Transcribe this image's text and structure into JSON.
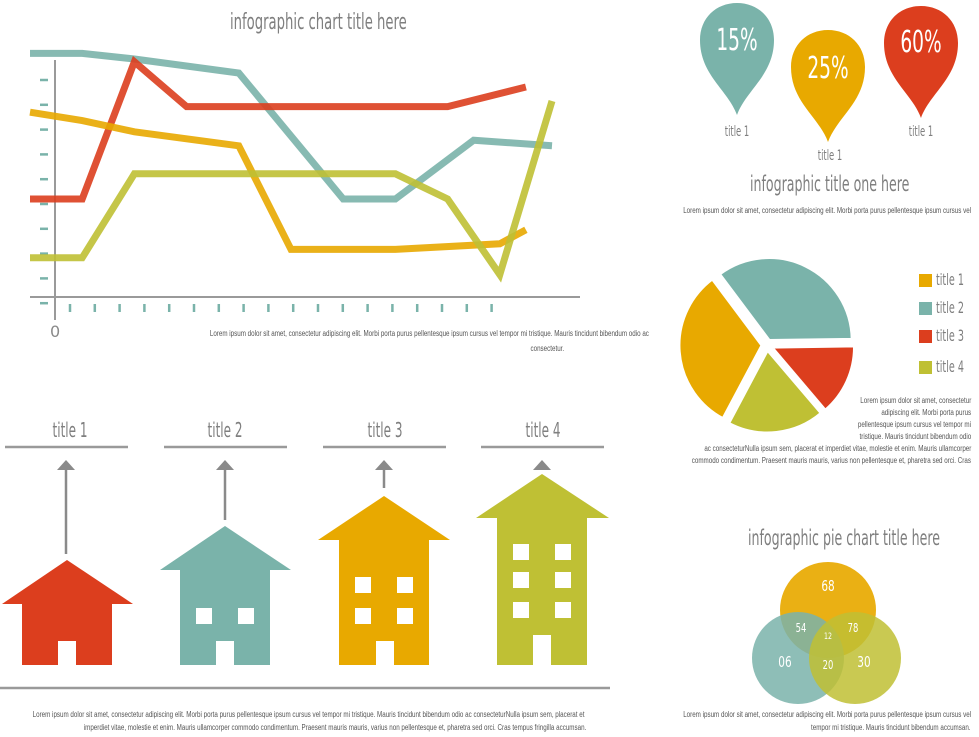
{
  "colors": {
    "orange": "#e8a900",
    "teal": "#7ab3aa",
    "red": "#dc3e1e",
    "olive": "#bfc034",
    "axis": "#9a9a9a",
    "tick": "#7ab3aa"
  },
  "line_chart": {
    "title": "infographic chart title here",
    "origin_label": "0",
    "caption_line1": "Lorem ipsum dolor sit amet, consectetur adipiscing elit. Morbi porta purus pellentesque ipsum cursus vel tempor mi tristique. Mauris tincidunt bibendum odio ac",
    "caption_line2": "consectetur."
  },
  "houses": {
    "items": [
      {
        "label": "title 1"
      },
      {
        "label": "title 2"
      },
      {
        "label": "title 3"
      },
      {
        "label": "title 4"
      }
    ],
    "caption_line1": "Lorem ipsum dolor sit amet, consectetur adipiscing elit. Morbi porta purus pellentesque ipsum cursus vel tempor mi tristique. Mauris tincidunt bibendum odio ac consecteturNulla ipsum sem, placerat et",
    "caption_line2": "imperdiet vitae, molestie et enim. Mauris ullamcorper commodo condimentum. Praesent mauris mauris, varius non pellentesque et, pharetra sed orci. Cras tempus fringilla accumsan."
  },
  "pins": [
    {
      "value": "15%",
      "label": "title 1"
    },
    {
      "value": "25%",
      "label": "title 1"
    },
    {
      "value": "60%",
      "label": "title 1"
    }
  ],
  "section_one": {
    "title": "infographic title one here",
    "text": "Lorem ipsum dolor sit amet, consectetur adipiscing elit. Morbi porta purus pellentesque ipsum cursus vel"
  },
  "pie": {
    "legend": [
      "title 1",
      "title 2",
      "title 3",
      "title 4"
    ],
    "text_lines": [
      "Lorem ipsum dolor sit amet, consectetur",
      "adipiscing elit. Morbi porta purus",
      "pellentesque ipsum cursus vel tempor mi",
      "tristique. Mauris tincidunt bibendum odio",
      "ac consecteturNulla ipsum sem, placerat et imperdiet vitae, molestie et enim. Mauris ullamcorper",
      "commodo condimentum. Praesent mauris mauris, varius non pellentesque et, pharetra sed orci. Cras"
    ]
  },
  "venn": {
    "title": "infographic pie chart title here",
    "top": "68",
    "left": "06",
    "right": "30",
    "top_left": "54",
    "top_right": "78",
    "bottom": "20",
    "center": "12",
    "caption_line1": "Lorem ipsum dolor sit amet, consectetur adipiscing elit. Morbi porta purus pellentesque ipsum cursus vel",
    "caption_line2": "tempor mi tristique. Mauris tincidunt bibendum accumsan."
  },
  "chart_data": [
    {
      "type": "line",
      "title": "infographic chart title here",
      "xlabel": "",
      "ylabel": "",
      "x": [
        0,
        1,
        2,
        3,
        4,
        5,
        6,
        7,
        8,
        9,
        10,
        11,
        12,
        13,
        14,
        15,
        16,
        17,
        18,
        19,
        20
      ],
      "ylim": [
        0,
        9
      ],
      "series": [
        {
          "color": "#7ab3aa",
          "x": [
            0,
            2,
            4,
            8,
            12,
            14,
            17,
            20
          ],
          "values": [
            8.7,
            8.7,
            8.5,
            8.0,
            3.5,
            3.5,
            5.6,
            5.4
          ]
        },
        {
          "color": "#dc3e1e",
          "x": [
            0,
            2,
            4,
            6,
            8,
            12,
            14,
            16,
            19
          ],
          "values": [
            3.5,
            3.5,
            8.4,
            6.8,
            6.8,
            6.8,
            6.8,
            6.8,
            7.5
          ]
        },
        {
          "color": "#e8a900",
          "x": [
            0,
            2,
            4,
            8,
            10,
            14,
            18,
            19
          ],
          "values": [
            6.6,
            6.3,
            5.9,
            5.4,
            1.7,
            1.7,
            1.9,
            2.4
          ]
        },
        {
          "color": "#bfc034",
          "x": [
            0,
            2,
            4,
            6,
            8,
            12,
            14,
            16,
            18,
            20
          ],
          "values": [
            1.4,
            1.4,
            4.4,
            4.4,
            4.4,
            4.4,
            4.4,
            3.5,
            0.8,
            7.0
          ]
        }
      ]
    },
    {
      "type": "pie",
      "categories": [
        "title 1",
        "title 2",
        "title 3",
        "title 4"
      ],
      "values": [
        32,
        35,
        14,
        19
      ],
      "colors": [
        "#e8a900",
        "#7ab3aa",
        "#dc3e1e",
        "#bfc034"
      ]
    }
  ]
}
